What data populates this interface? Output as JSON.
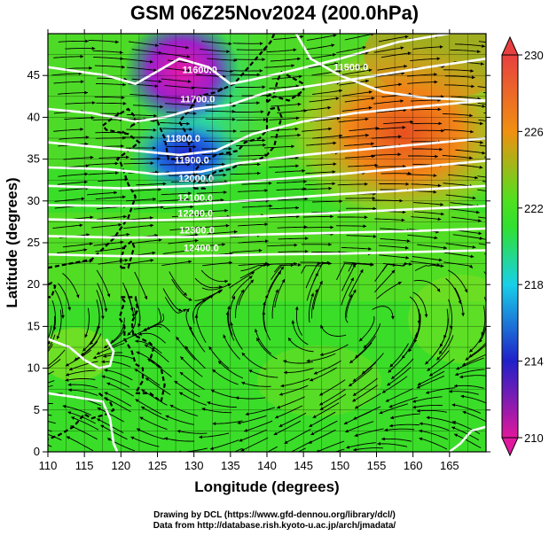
{
  "title": "GSM 06Z25Nov2024 (200.0hPa)",
  "credits": {
    "line1": "Drawing by DCL (https://www.gfd-dennou.org/library/dcl/)",
    "line2": "Data from http://database.rish.kyoto-u.ac.jp/arch/jmadata/"
  },
  "chart_data": {
    "type": "heatmap",
    "xlabel": "Longitude (degrees)",
    "ylabel": "Latitude  (degrees)",
    "xlim": [
      110,
      170
    ],
    "ylim": [
      0,
      50
    ],
    "x_ticks": [
      "110",
      "115",
      "120",
      "125",
      "130",
      "135",
      "140",
      "145",
      "150",
      "155",
      "160",
      "165"
    ],
    "y_ticks": [
      "0",
      "5",
      "10",
      "15",
      "20",
      "25",
      "30",
      "35",
      "40",
      "45"
    ],
    "colorbar": {
      "ticks": [
        "210",
        "214",
        "218",
        "222",
        "226",
        "230"
      ],
      "range": [
        210,
        230
      ],
      "colors": [
        "#e0189c",
        "#2020c8",
        "#18d0e8",
        "#30e030",
        "#f09010",
        "#e84040"
      ]
    },
    "contour_labels": [
      "11600.0",
      "11700.0",
      "11800.0",
      "11900.0",
      "11500.0",
      "12000.0",
      "12100.0",
      "12200.0",
      "12300.0",
      "12400.0"
    ],
    "grid": true
  }
}
